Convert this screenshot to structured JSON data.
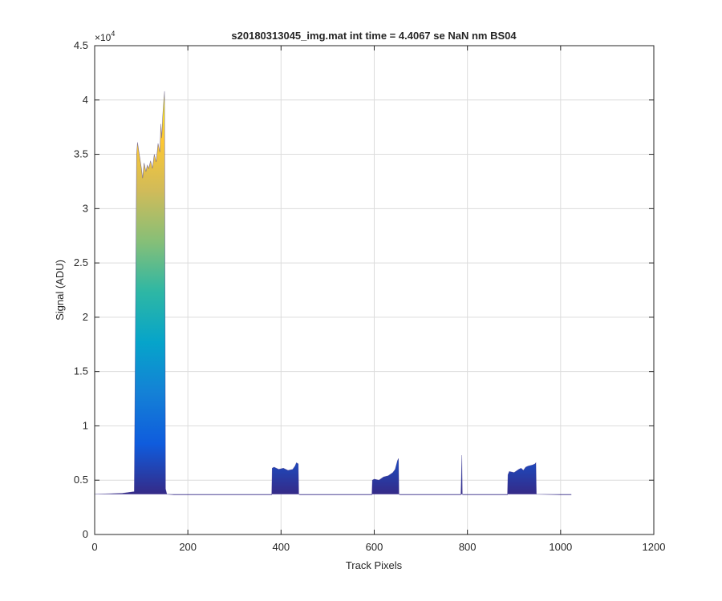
{
  "chart_data": {
    "type": "area",
    "title": "s20180313045_img.mat int time = 4.4067 se  NaN nm BS04",
    "xlabel": "Track Pixels",
    "ylabel": "Signal (ADU)",
    "xlim": [
      0,
      1200
    ],
    "ylim": [
      0,
      45000
    ],
    "x_ticks": [
      0,
      200,
      400,
      600,
      800,
      1000,
      1200
    ],
    "x_tick_labels": [
      "0",
      "200",
      "400",
      "600",
      "800",
      "1000",
      "1200"
    ],
    "y_ticks": [
      0,
      5000,
      10000,
      15000,
      20000,
      25000,
      30000,
      35000,
      40000,
      45000
    ],
    "y_tick_labels": [
      "0",
      "0.5",
      "1",
      "1.5",
      "2",
      "2.5",
      "3",
      "3.5",
      "4",
      "4.5"
    ],
    "y_exponent_label": "×10",
    "y_exponent_power": "4",
    "grid": true,
    "colormap": [
      "#352a87",
      "#0f5cdd",
      "#1481d6",
      "#06a4ca",
      "#2eb7a4",
      "#87bf77",
      "#d1bb59",
      "#fec832",
      "#f9fb0e"
    ],
    "baseline": 3700,
    "x": [
      0,
      60,
      85,
      90,
      92,
      95,
      100,
      103,
      106,
      110,
      113,
      116,
      120,
      124,
      128,
      132,
      136,
      140,
      142,
      144,
      146,
      148,
      150,
      152,
      155,
      170,
      220,
      300,
      380,
      381,
      385,
      395,
      405,
      415,
      425,
      430,
      433,
      437,
      438,
      440,
      500,
      595,
      596,
      600,
      610,
      620,
      630,
      640,
      645,
      650,
      652,
      653,
      655,
      700,
      780,
      786,
      787,
      788,
      789,
      790,
      791,
      792,
      800,
      850,
      886,
      887,
      890,
      900,
      910,
      915,
      920,
      925,
      930,
      940,
      945,
      947,
      948,
      1000,
      1023
    ],
    "y": [
      3700,
      3800,
      3950,
      35000,
      36100,
      35200,
      33800,
      32800,
      34200,
      33400,
      34000,
      33700,
      34400,
      33700,
      35000,
      34300,
      36000,
      35200,
      37800,
      36500,
      38500,
      39800,
      40800,
      4200,
      3700,
      3650,
      3650,
      3650,
      3650,
      6100,
      6200,
      6000,
      6100,
      5900,
      6000,
      6300,
      6600,
      6500,
      3700,
      3650,
      3650,
      3650,
      5000,
      5100,
      5000,
      5300,
      5400,
      5700,
      6000,
      6800,
      7000,
      3700,
      3650,
      3650,
      3650,
      3650,
      5200,
      7300,
      3700,
      3650,
      3650,
      3650,
      3650,
      3650,
      3650,
      5500,
      5800,
      5700,
      6000,
      6100,
      5900,
      6200,
      6300,
      6400,
      6500,
      6600,
      3700,
      3650,
      3650
    ]
  }
}
